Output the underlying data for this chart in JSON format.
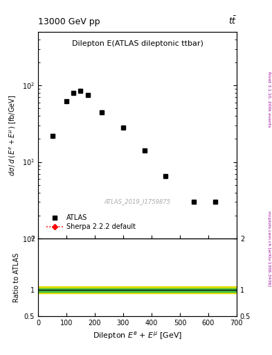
{
  "title_top": "13000 GeV pp",
  "title_top_right": "tt̅",
  "plot_title": "Dilepton E(ATLAS dileptonic ttbar)",
  "atlas_label": "ATLAS_2019_I1759875",
  "ylabel": "dσ / d ( E^{e} + E^{μ} ) [fb/GeV]",
  "ylabel_right": "Rivet 3.1.10, 200k events",
  "refid_right": "mcplots.cern.ch [arXiv:1306.3436]",
  "data_x": [
    50,
    100,
    125,
    150,
    175,
    225,
    300,
    375,
    450,
    550,
    625
  ],
  "data_y": [
    22,
    62,
    80,
    85,
    75,
    45,
    28,
    14,
    6.5,
    3.0,
    3.0
  ],
  "ratio_band_green_lo": 0.97,
  "ratio_band_green_hi": 1.03,
  "ratio_band_yellow_lo": 0.94,
  "ratio_band_yellow_hi": 1.07,
  "ylim_main": [
    1.0,
    500
  ],
  "xlim": [
    0,
    700
  ],
  "ylim_ratio": [
    0.5,
    2.0
  ],
  "legend_entries": [
    "ATLAS",
    "Sherpa 2.2.2 default"
  ],
  "marker_color": "black",
  "line_color": "red",
  "green_band_color": "#44bb44",
  "yellow_band_color": "#dddd00",
  "background_color": "white",
  "ratio_line_color": "black"
}
